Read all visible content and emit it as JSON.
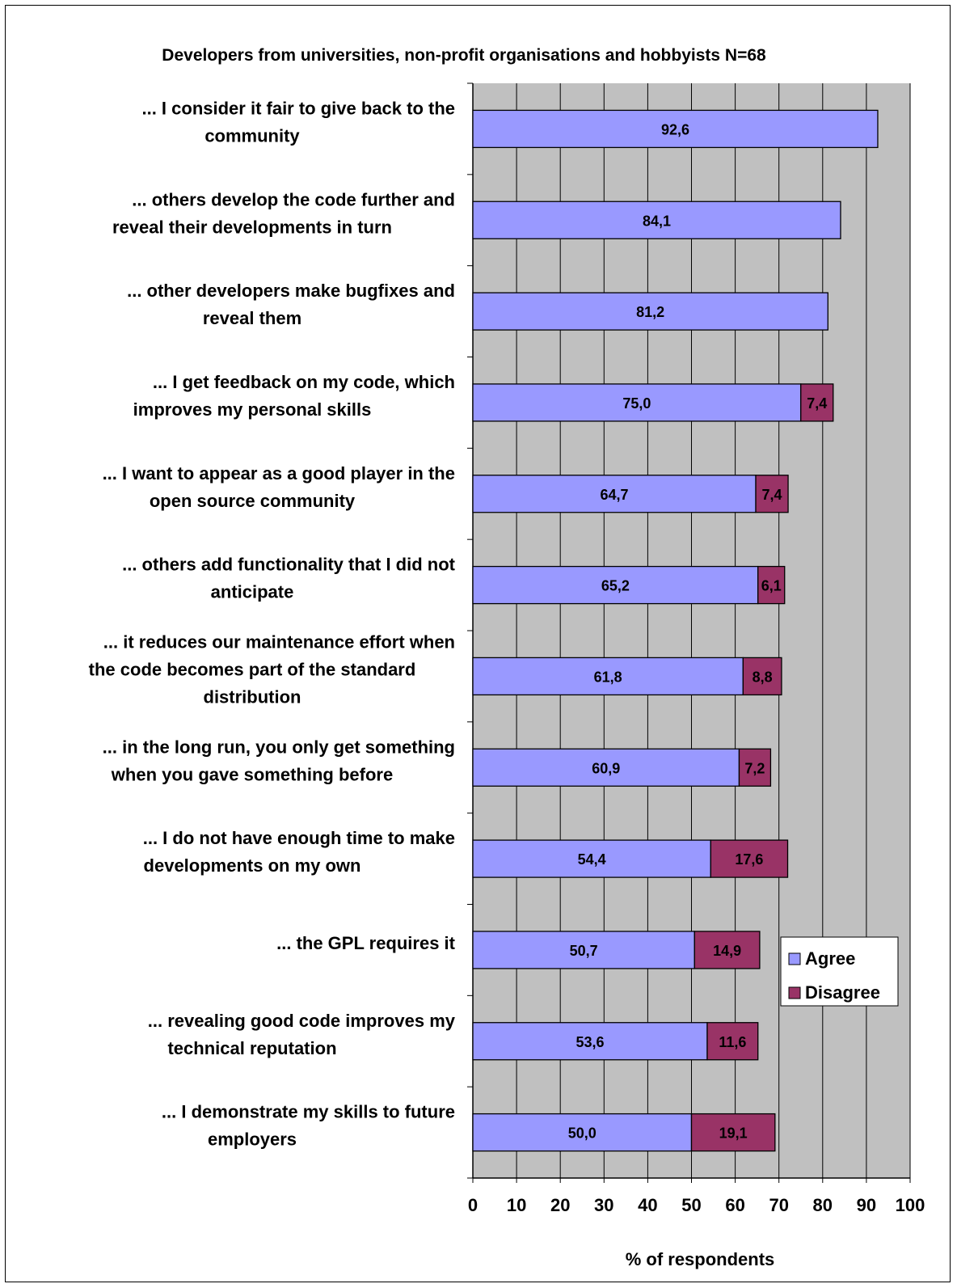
{
  "chart_data": {
    "type": "bar",
    "orientation": "horizontal",
    "stacked": true,
    "title": "Developers from universities, non-profit organisations and hobbyists N=68",
    "xlabel": "% of respondents",
    "xlim": [
      0,
      100
    ],
    "xticks": [
      "0",
      "10",
      "20",
      "30",
      "40",
      "50",
      "60",
      "70",
      "80",
      "90",
      "100"
    ],
    "grid": true,
    "legend_position": "right",
    "categories": [
      [
        "... I consider it fair to give back to the",
        "community"
      ],
      [
        "... others develop the code further and",
        "reveal their developments in turn"
      ],
      [
        "... other developers make bugfixes and",
        "reveal them"
      ],
      [
        "... I get feedback on my code, which",
        "improves my personal skills"
      ],
      [
        "... I want to appear as a good player in the",
        "open source community"
      ],
      [
        "... others add functionality that I did not",
        "anticipate"
      ],
      [
        "... it reduces our maintenance effort when",
        "the code becomes part of the standard",
        "distribution"
      ],
      [
        "... in the long run, you only get something",
        "when you gave something before"
      ],
      [
        "... I do not have enough time to make",
        "developments on my own"
      ],
      [
        "... the GPL requires it"
      ],
      [
        "... revealing good code improves my",
        "technical reputation"
      ],
      [
        "... I demonstrate my skills to future",
        "employers"
      ]
    ],
    "series": [
      {
        "name": "Agree",
        "color": "#9999ff",
        "values": [
          92.6,
          84.1,
          81.2,
          75.0,
          64.7,
          65.2,
          61.8,
          60.9,
          54.4,
          50.7,
          53.6,
          50.0
        ],
        "labels": [
          "92,6",
          "84,1",
          "81,2",
          "75,0",
          "64,7",
          "65,2",
          "61,8",
          "60,9",
          "54,4",
          "50,7",
          "53,6",
          "50,0"
        ]
      },
      {
        "name": "Disagree",
        "color": "#993366",
        "values": [
          null,
          null,
          null,
          7.4,
          7.4,
          6.1,
          8.8,
          7.2,
          17.6,
          14.9,
          11.6,
          19.1
        ],
        "labels": [
          "",
          "",
          "",
          "7,4",
          "7,4",
          "6,1",
          "8,8",
          "7,2",
          "17,6",
          "14,9",
          "11,6",
          "19,1"
        ]
      }
    ],
    "colors": {
      "plot_background": "#c0c0c0",
      "gridline": "#000000"
    }
  }
}
